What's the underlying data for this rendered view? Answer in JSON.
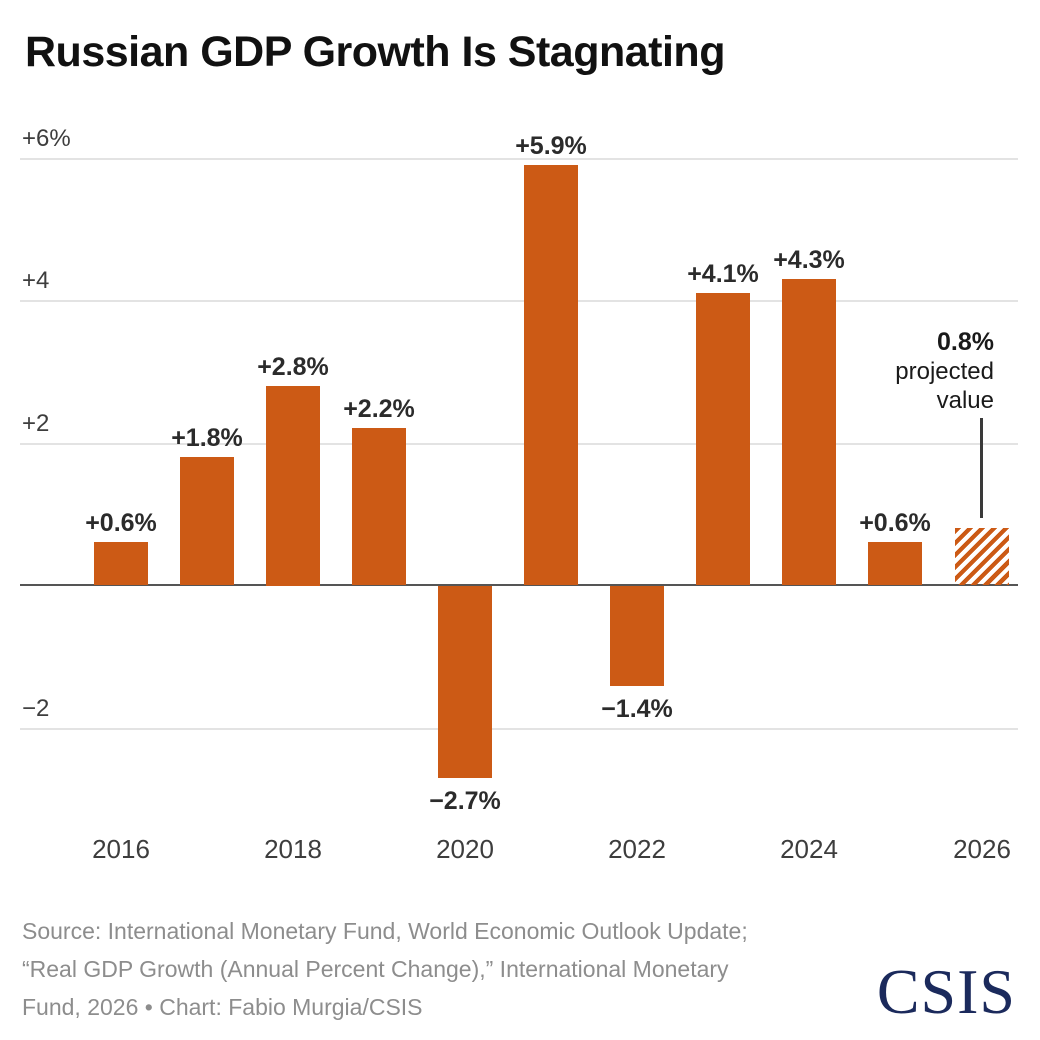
{
  "title": "Russian GDP Growth Is Stagnating",
  "chart_data": {
    "type": "bar",
    "title": "Russian GDP Growth Is Stagnating",
    "unit": "percent (annual GDP growth)",
    "categories": [
      "2016",
      "2017",
      "2018",
      "2019",
      "2020",
      "2021",
      "2022",
      "2023",
      "2024",
      "2025",
      "2026"
    ],
    "values": [
      0.6,
      1.8,
      2.8,
      2.2,
      -2.7,
      5.9,
      -1.4,
      4.1,
      4.3,
      0.6,
      0.8
    ],
    "bar_labels": [
      "+0.6%",
      "+1.8%",
      "+2.8%",
      "+2.2%",
      "−2.7%",
      "+5.9%",
      "−1.4%",
      "+4.1%",
      "+4.3%",
      "+0.6%",
      null
    ],
    "projected_index": 10,
    "annotation": {
      "value_label": "0.8%",
      "line1": "projected",
      "line2": "value"
    },
    "y_ticks": [
      {
        "v": 6,
        "label": "+6%"
      },
      {
        "v": 4,
        "label": "+4"
      },
      {
        "v": 2,
        "label": "+2"
      },
      {
        "v": -2,
        "label": "−2"
      }
    ],
    "x_tick_labels": [
      "2016",
      "2018",
      "2020",
      "2022",
      "2024",
      "2026"
    ],
    "ylim": [
      -3.3,
      6.3
    ],
    "grid": true,
    "legend": "none",
    "colors": {
      "bar": "#cc5a15",
      "gridline": "#e3e3e3",
      "zero_axis": "#555555",
      "bar_label": "#2b2b2b",
      "tick_label": "#3d3d3d",
      "leader_line": "#3a3a3a",
      "annotation_text": "#1a1a1a"
    }
  },
  "footer": {
    "source_lines": [
      "Source: International Monetary Fund, World Economic Outlook Update;",
      "“Real GDP Growth (Annual Percent Change),” International Monetary",
      "Fund, 2026 • Chart: Fabio Murgia/CSIS"
    ],
    "logo_text": "CSIS",
    "logo_color": "#1b2a5c"
  }
}
